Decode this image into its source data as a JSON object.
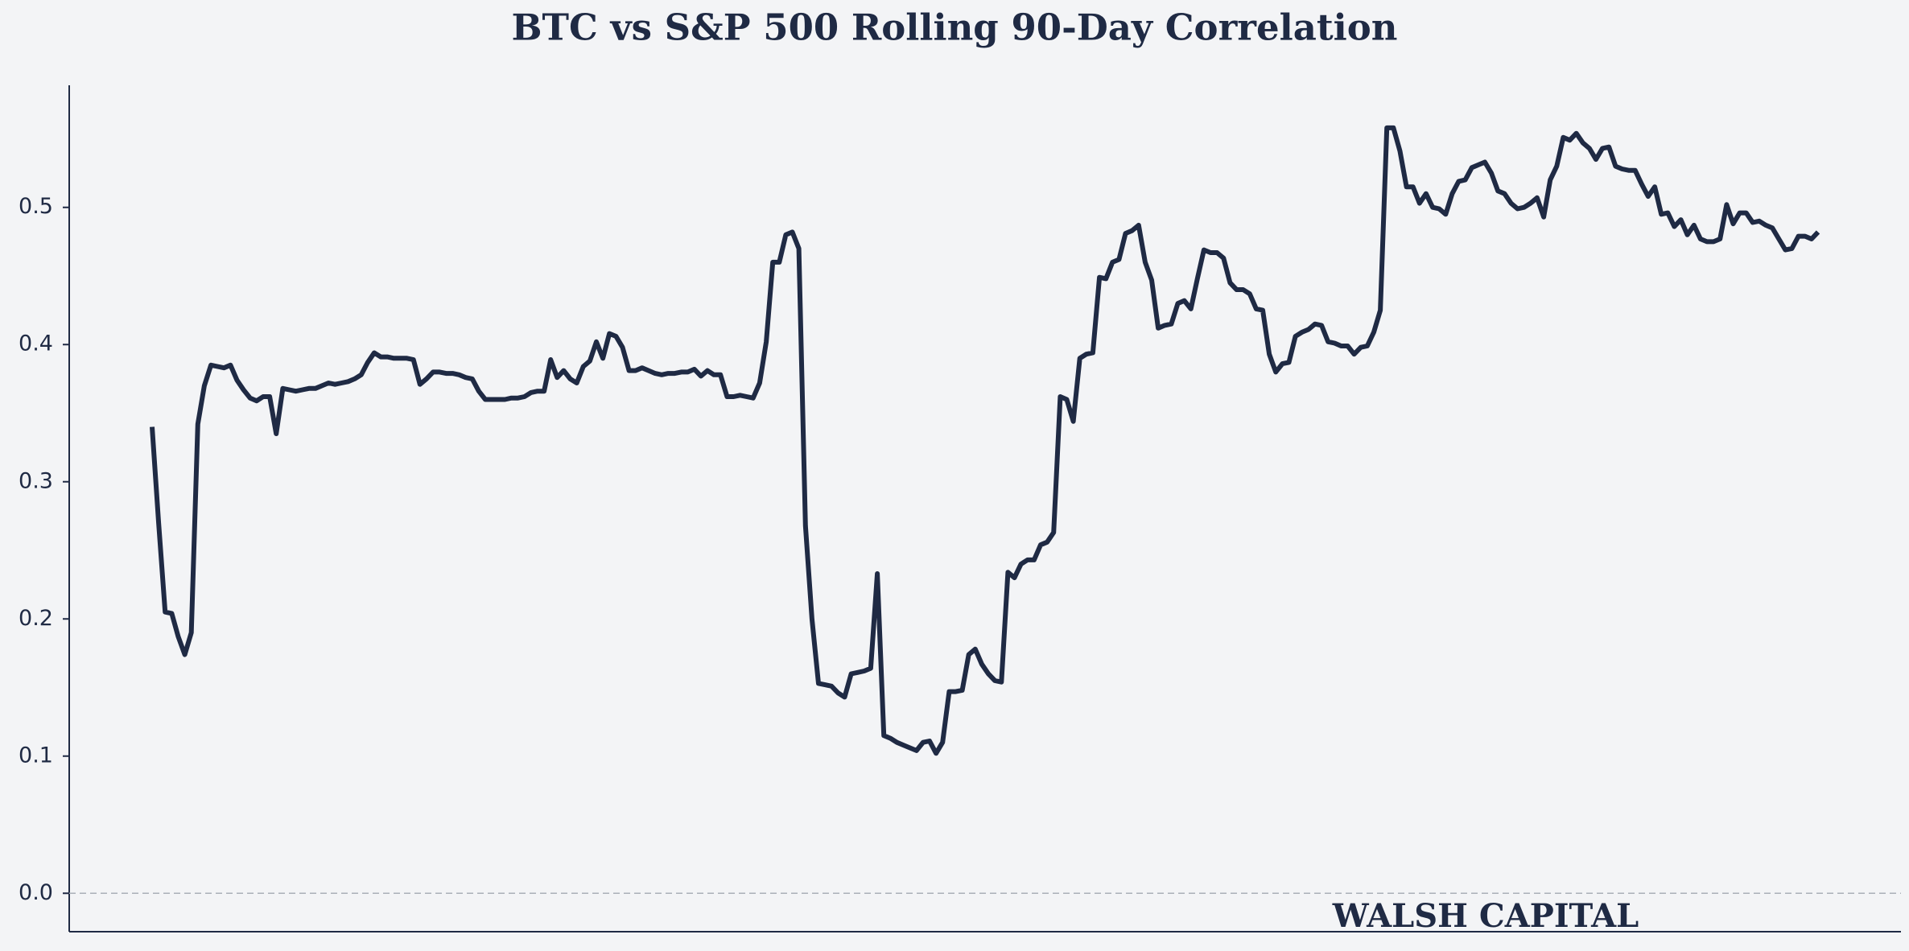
{
  "chart_data": {
    "type": "line",
    "title": "BTC vs S&P 500 Rolling 90-Day Correlation",
    "watermark": "WALSH CAPITAL",
    "series": [
      {
        "color": "#1f2a44",
        "values": [
          0.34,
          0.27,
          0.205,
          0.204,
          0.187,
          0.174,
          0.19,
          0.342,
          0.37,
          0.385,
          0.384,
          0.383,
          0.385,
          0.374,
          0.367,
          0.361,
          0.359,
          0.362,
          0.362,
          0.335,
          0.368,
          0.367,
          0.366,
          0.367,
          0.368,
          0.368,
          0.37,
          0.372,
          0.371,
          0.372,
          0.373,
          0.375,
          0.378,
          0.387,
          0.394,
          0.391,
          0.391,
          0.39,
          0.39,
          0.39,
          0.389,
          0.371,
          0.375,
          0.38,
          0.38,
          0.379,
          0.379,
          0.378,
          0.376,
          0.375,
          0.366,
          0.36,
          0.36,
          0.36,
          0.36,
          0.361,
          0.361,
          0.362,
          0.365,
          0.366,
          0.366,
          0.389,
          0.376,
          0.381,
          0.375,
          0.372,
          0.384,
          0.388,
          0.402,
          0.39,
          0.408,
          0.406,
          0.398,
          0.381,
          0.381,
          0.383,
          0.381,
          0.379,
          0.378,
          0.379,
          0.379,
          0.38,
          0.38,
          0.382,
          0.377,
          0.381,
          0.378,
          0.378,
          0.362,
          0.362,
          0.363,
          0.362,
          0.361,
          0.372,
          0.402,
          0.46,
          0.46,
          0.48,
          0.482,
          0.47,
          0.268,
          0.2,
          0.153,
          0.152,
          0.151,
          0.146,
          0.143,
          0.16,
          0.161,
          0.162,
          0.164,
          0.233,
          0.115,
          0.113,
          0.11,
          0.108,
          0.106,
          0.104,
          0.11,
          0.111,
          0.102,
          0.11,
          0.147,
          0.147,
          0.148,
          0.174,
          0.178,
          0.167,
          0.16,
          0.155,
          0.154,
          0.234,
          0.23,
          0.24,
          0.243,
          0.243,
          0.254,
          0.256,
          0.263,
          0.362,
          0.36,
          0.344,
          0.39,
          0.393,
          0.394,
          0.449,
          0.448,
          0.46,
          0.462,
          0.481,
          0.483,
          0.487,
          0.46,
          0.447,
          0.412,
          0.414,
          0.415,
          0.43,
          0.432,
          0.426,
          0.448,
          0.469,
          0.467,
          0.467,
          0.463,
          0.445,
          0.44,
          0.44,
          0.437,
          0.426,
          0.425,
          0.393,
          0.38,
          0.386,
          0.387,
          0.406,
          0.409,
          0.411,
          0.415,
          0.414,
          0.402,
          0.401,
          0.399,
          0.399,
          0.393,
          0.398,
          0.399,
          0.409,
          0.425,
          0.558,
          0.558,
          0.541,
          0.515,
          0.515,
          0.503,
          0.51,
          0.5,
          0.499,
          0.495,
          0.51,
          0.519,
          0.52,
          0.529,
          0.531,
          0.533,
          0.525,
          0.512,
          0.51,
          0.503,
          0.499,
          0.5,
          0.503,
          0.507,
          0.493,
          0.52,
          0.53,
          0.551,
          0.549,
          0.554,
          0.547,
          0.543,
          0.535,
          0.543,
          0.544,
          0.53,
          0.528,
          0.527,
          0.527,
          0.517,
          0.508,
          0.515,
          0.495,
          0.496,
          0.486,
          0.491,
          0.48,
          0.487,
          0.477,
          0.475,
          0.475,
          0.477,
          0.502,
          0.488,
          0.496,
          0.496,
          0.489,
          0.49,
          0.487,
          0.485,
          0.477,
          0.469,
          0.47,
          0.479,
          0.479,
          0.477,
          0.482
        ]
      }
    ],
    "ylim": [
      -0.028,
      0.589
    ],
    "yticks": [
      {
        "value": 0,
        "label": "0.0"
      },
      0.1,
      0.2,
      0.3,
      0.4,
      0.5
    ],
    "hline": 0,
    "background": "#f3f4f6"
  }
}
